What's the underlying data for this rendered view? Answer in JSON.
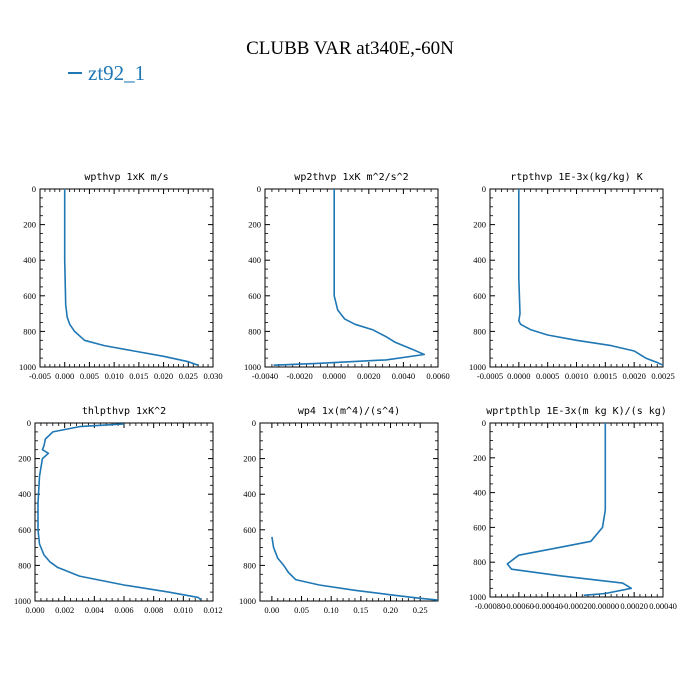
{
  "page": {
    "title": "CLUBB VAR at340E,-60N",
    "legend_label": "zt92_1",
    "legend_color": "#1f77b4",
    "line_color": "#1f77b4"
  },
  "chart_data": [
    {
      "type": "line",
      "title": "wpthvp  1xK m/s",
      "xlim": [
        -0.005,
        0.03
      ],
      "xticks": [
        -0.005,
        0.0,
        0.005,
        0.01,
        0.015,
        0.02,
        0.025,
        0.03
      ],
      "xtick_labels": [
        "-0.005",
        "0.000",
        "0.005",
        "0.010",
        "0.015",
        "0.020",
        "0.025",
        "0.030"
      ],
      "ylim": [
        1000,
        0
      ],
      "yticks": [
        0,
        200,
        400,
        600,
        800,
        1000
      ],
      "ytick_labels": [
        "0",
        "200",
        "400",
        "600",
        "800",
        "1000"
      ],
      "series": [
        {
          "name": "zt92_1",
          "x": [
            0.0,
            0.0,
            0.0002,
            0.0005,
            0.001,
            0.002,
            0.004,
            0.008,
            0.014,
            0.02,
            0.025,
            0.027
          ],
          "y": [
            0,
            400,
            650,
            720,
            760,
            800,
            850,
            880,
            910,
            940,
            970,
            990
          ]
        }
      ]
    },
    {
      "type": "line",
      "title": "wp2thvp  1xK m^2/s^2",
      "xlim": [
        -0.004,
        0.006
      ],
      "xticks": [
        -0.004,
        -0.002,
        0.0,
        0.002,
        0.004,
        0.006
      ],
      "xtick_labels": [
        "-0.0040",
        "-0.0020",
        "0.0000",
        "0.0020",
        "0.0040",
        "0.0060"
      ],
      "ylim": [
        1000,
        0
      ],
      "yticks": [
        0,
        200,
        400,
        600,
        800,
        1000
      ],
      "ytick_labels": [
        "0",
        "200",
        "400",
        "600",
        "800",
        "1000"
      ],
      "series": [
        {
          "name": "zt92_1",
          "x": [
            0.0,
            0.0,
            0.0002,
            0.0006,
            0.0012,
            0.0022,
            0.003,
            0.0035,
            0.0045,
            0.0052,
            0.003,
            -0.001,
            -0.0035
          ],
          "y": [
            0,
            600,
            680,
            730,
            760,
            790,
            830,
            860,
            900,
            930,
            960,
            980,
            990
          ]
        }
      ]
    },
    {
      "type": "line",
      "title": "rtpthvp  1E-3x(kg/kg) K",
      "xlim": [
        -0.0005,
        0.0025
      ],
      "xticks": [
        -0.0005,
        0.0,
        0.0005,
        0.001,
        0.0015,
        0.002,
        0.0025
      ],
      "xtick_labels": [
        "-0.0005",
        "0.0000",
        "0.0005",
        "0.0010",
        "0.0015",
        "0.0020",
        "0.0025"
      ],
      "ylim": [
        1000,
        0
      ],
      "yticks": [
        0,
        200,
        400,
        600,
        800,
        1000
      ],
      "ytick_labels": [
        "0",
        "200",
        "400",
        "600",
        "800",
        "1000"
      ],
      "series": [
        {
          "name": "zt92_1",
          "x": [
            0.0,
            0.0,
            2e-05,
            0.0,
            3e-05,
            0.0002,
            0.0005,
            0.001,
            0.0016,
            0.002,
            0.0022,
            0.0024,
            0.0025
          ],
          "y": [
            0,
            500,
            700,
            740,
            760,
            790,
            820,
            850,
            880,
            910,
            950,
            975,
            990
          ]
        }
      ]
    },
    {
      "type": "line",
      "title": "thlpthvp  1xK^2",
      "xlim": [
        0.0,
        0.012
      ],
      "xticks": [
        0.0,
        0.002,
        0.004,
        0.006,
        0.008,
        0.01,
        0.012
      ],
      "xtick_labels": [
        "0.000",
        "0.002",
        "0.004",
        "0.006",
        "0.008",
        "0.010",
        "0.012"
      ],
      "ylim": [
        1000,
        0
      ],
      "yticks": [
        0,
        200,
        400,
        600,
        800,
        1000
      ],
      "ytick_labels": [
        "0",
        "200",
        "400",
        "600",
        "800",
        "1000"
      ],
      "series": [
        {
          "name": "zt92_1",
          "x": [
            0.006,
            0.003,
            0.0012,
            0.0007,
            0.0006,
            0.0005,
            0.0009,
            0.0005,
            0.0003,
            0.0002,
            0.0002,
            0.0003,
            0.0006,
            0.001,
            0.0015,
            0.003,
            0.006,
            0.009,
            0.011,
            0.0112
          ],
          "y": [
            5,
            20,
            50,
            90,
            130,
            150,
            170,
            200,
            300,
            450,
            600,
            680,
            740,
            780,
            810,
            860,
            910,
            950,
            980,
            995
          ]
        }
      ]
    },
    {
      "type": "line",
      "title": "wp4  1x(m^4)/(s^4)",
      "xlim": [
        -0.02,
        0.28
      ],
      "xticks": [
        0.0,
        0.05,
        0.1,
        0.15,
        0.2,
        0.25
      ],
      "xtick_labels": [
        "0.00",
        "0.05",
        "0.10",
        "0.15",
        "0.20",
        "0.25"
      ],
      "ylim": [
        1000,
        0
      ],
      "yticks": [
        0,
        200,
        400,
        600,
        800,
        1000
      ],
      "ytick_labels": [
        "0",
        "200",
        "400",
        "600",
        "800",
        "1000"
      ],
      "series": [
        {
          "name": "zt92_1",
          "x": [
            0.0,
            0.003,
            0.01,
            0.02,
            0.028,
            0.04,
            0.08,
            0.14,
            0.2,
            0.25,
            0.28
          ],
          "y": [
            640,
            700,
            760,
            800,
            840,
            880,
            910,
            940,
            965,
            985,
            995
          ]
        }
      ]
    },
    {
      "type": "line",
      "title": "wprtpthlp  1E-3x(m kg K)/(s kg)",
      "xlim": [
        -0.0008,
        0.0004
      ],
      "xticks": [
        -0.0008,
        -0.0006,
        -0.0004,
        -0.0002,
        0.0,
        0.0002,
        0.0004
      ],
      "xtick_labels": [
        "-0.00080",
        "-0.00060",
        "-0.00040",
        "-0.00020",
        "0.00000",
        "0.00020",
        "0.00040"
      ],
      "ylim": [
        1000,
        0
      ],
      "yticks": [
        0,
        200,
        400,
        600,
        800,
        1000
      ],
      "ytick_labels": [
        "0",
        "200",
        "400",
        "600",
        "800",
        "1000"
      ],
      "series": [
        {
          "name": "zt92_1",
          "x": [
            0.0,
            0.0,
            -2e-05,
            -0.0001,
            -0.00035,
            -0.0006,
            -0.00068,
            -0.00065,
            -0.0003,
            0.00012,
            0.00018,
            0.0,
            -0.00015
          ],
          "y": [
            0,
            500,
            600,
            680,
            720,
            760,
            810,
            840,
            880,
            920,
            950,
            980,
            990
          ]
        }
      ]
    }
  ]
}
